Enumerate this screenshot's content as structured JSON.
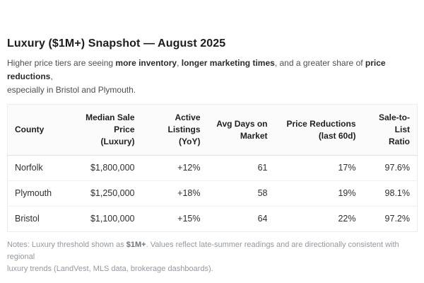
{
  "page": {
    "title": "Luxury ($1M+) Snapshot — August 2025"
  },
  "subtitle": {
    "part_intro": "Higher price tiers are seeing ",
    "bold_inventory": "more inventory",
    "part_comma1": ", ",
    "bold_marketing": "longer marketing times",
    "part_share": ", and a greater share of ",
    "bold_reductions": "price reductions",
    "part_comma2": ",",
    "line2": "especially in Bristol and Plymouth."
  },
  "table": {
    "headers": [
      {
        "line1": "County",
        "line2": ""
      },
      {
        "line1": "Median Sale Price",
        "line2": "(Luxury)"
      },
      {
        "line1": "Active",
        "line2": "Listings (YoY)"
      },
      {
        "line1": "Avg Days on",
        "line2": "Market"
      },
      {
        "line1": "Price Reductions",
        "line2": "(last 60d)"
      },
      {
        "line1": "Sale-to-List",
        "line2": "Ratio"
      }
    ],
    "rows": [
      {
        "county": "Norfolk",
        "median_sale_price": "$1,800,000",
        "active_listings_yoy": "+12%",
        "avg_days_on_market": "61",
        "price_reductions_last_60d": "17%",
        "sale_to_list_ratio": "97.6%"
      },
      {
        "county": "Plymouth",
        "median_sale_price": "$1,250,000",
        "active_listings_yoy": "+18%",
        "avg_days_on_market": "58",
        "price_reductions_last_60d": "19%",
        "sale_to_list_ratio": "98.1%"
      },
      {
        "county": "Bristol",
        "median_sale_price": "$1,100,000",
        "active_listings_yoy": "+15%",
        "avg_days_on_market": "64",
        "price_reductions_last_60d": "22%",
        "sale_to_list_ratio": "97.2%"
      }
    ]
  },
  "notes": {
    "part_intro": "Notes: Luxury threshold shown as ",
    "bold_threshold": "$1M+",
    "line1_rest": ". Values reflect late-summer readings and are directionally consistent with regional",
    "line2": "luxury trends (LandVest, MLS data, brokerage dashboards)."
  },
  "colors": {
    "title_text": "#1c1c1c",
    "body_text": "#2f2f2f",
    "subtitle_text": "#4e4e4e",
    "notes_text": "#9298a4",
    "table_border": "#ececec",
    "header_divider": "#e2e2e2",
    "row_divider": "#f0f0f0",
    "header_background": "#fbfbfb",
    "page_background": "#ffffff"
  }
}
